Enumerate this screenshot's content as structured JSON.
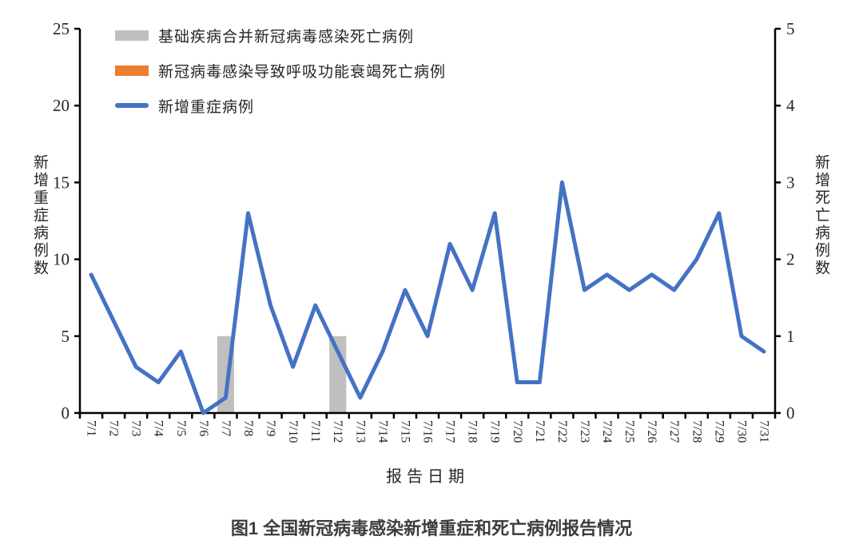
{
  "figure": {
    "caption": "图1 全国新冠病毒感染新增重症和死亡病例报告情况"
  },
  "chart_data": {
    "type": "bar+line combo",
    "categories": [
      "7/1",
      "7/2",
      "7/3",
      "7/4",
      "7/5",
      "7/6",
      "7/7",
      "7/8",
      "7/9",
      "7/10",
      "7/11",
      "7/12",
      "7/13",
      "7/14",
      "7/15",
      "7/16",
      "7/17",
      "7/18",
      "7/19",
      "7/20",
      "7/21",
      "7/22",
      "7/23",
      "7/24",
      "7/25",
      "7/26",
      "7/27",
      "7/28",
      "7/29",
      "7/30",
      "7/31"
    ],
    "series": [
      {
        "name": "基础疾病合并新冠病毒感染死亡病例",
        "type": "bar",
        "axis": "right",
        "color": "#BFBFBF",
        "values": [
          0,
          0,
          0,
          0,
          0,
          0,
          1,
          0,
          0,
          0,
          0,
          1,
          0,
          0,
          0,
          0,
          0,
          0,
          0,
          0,
          0,
          0,
          0,
          0,
          0,
          0,
          0,
          0,
          0,
          0,
          0
        ]
      },
      {
        "name": "新冠病毒感染导致呼吸功能衰竭死亡病例",
        "type": "bar",
        "axis": "right",
        "color": "#ED7D31",
        "values": [
          0,
          0,
          0,
          0,
          0,
          0,
          0,
          0,
          0,
          0,
          0,
          0,
          0,
          0,
          0,
          0,
          0,
          0,
          0,
          0,
          0,
          0,
          0,
          0,
          0,
          0,
          0,
          0,
          0,
          0,
          0
        ]
      },
      {
        "name": "新增重症病例",
        "type": "line",
        "axis": "left",
        "color": "#4472C4",
        "values": [
          9,
          6,
          3,
          2,
          4,
          0,
          1,
          13,
          7,
          3,
          7,
          4,
          1,
          4,
          8,
          5,
          11,
          8,
          13,
          2,
          2,
          15,
          8,
          9,
          8,
          9,
          8,
          10,
          13,
          5,
          4
        ]
      }
    ],
    "xlabel": "报告日期",
    "ylabel_left": "新增重症病例数",
    "ylabel_right": "新增死亡病例数",
    "ylim_left": [
      0,
      25
    ],
    "yticks_left": [
      0,
      5,
      10,
      15,
      20,
      25
    ],
    "ylim_right": [
      0,
      5
    ],
    "yticks_right": [
      0,
      1,
      2,
      3,
      4,
      5
    ],
    "grid": "off",
    "legend_position": "top-left-inside",
    "axis_color": "#000000",
    "text_color": "#262626"
  }
}
